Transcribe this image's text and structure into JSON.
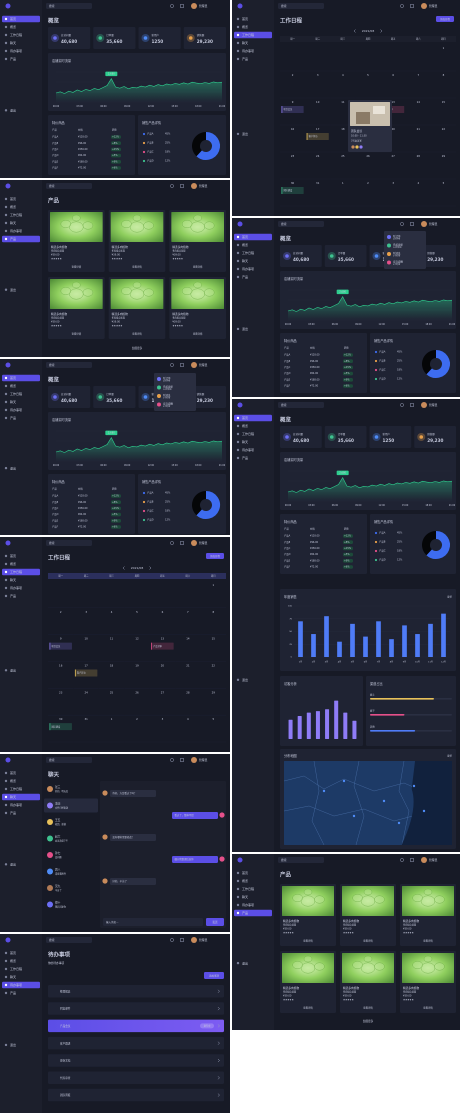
{
  "header": {
    "search": "搜索",
    "user": "管理员"
  },
  "sidebar": {
    "items": [
      "首页",
      "概览",
      "工作日程",
      "聊天",
      "待办事项",
      "产品"
    ],
    "logout": "退出"
  },
  "dashboard": {
    "title": "概览",
    "stats": [
      {
        "label": "总访问量",
        "value": "40,680",
        "color": "#6c6ff5"
      },
      {
        "label": "订单量",
        "value": "35,660",
        "color": "#3ec28f"
      },
      {
        "label": "新用户",
        "value": "1250",
        "color": "#4f8cf7"
      },
      {
        "label": "销售额",
        "value": "29,230",
        "color": "#e8a04a"
      }
    ],
    "traffic": {
      "title": "店铺实时流量",
      "ylim": [
        0,
        100
      ],
      "color": "#2ecf8f",
      "tooltip": "2,680",
      "values": [
        30,
        34,
        28,
        36,
        32,
        40,
        35,
        42,
        38,
        45,
        41,
        48,
        55,
        78,
        50,
        46,
        52,
        44,
        49,
        47,
        53,
        50,
        56,
        52,
        58,
        54,
        60,
        57,
        62,
        59,
        64,
        60,
        66,
        63,
        61,
        65,
        62,
        67,
        64,
        66
      ],
      "xlabels": [
        "00:00",
        "03:00",
        "06:00",
        "09:00",
        "12:00",
        "15:00",
        "18:00",
        "21:00"
      ]
    },
    "deals": {
      "title": "特价商品",
      "headers": [
        "产品",
        "价格",
        "趋势"
      ],
      "rows": [
        [
          "产品A",
          "¥128.00",
          "+12%"
        ],
        [
          "产品B",
          "¥96.00",
          "+8%"
        ],
        [
          "产品C",
          "¥256.00",
          "+15%"
        ],
        [
          "产品D",
          "¥64.00",
          "+5%"
        ],
        [
          "产品E",
          "¥188.00",
          "+9%"
        ],
        [
          "产品F",
          "¥72.00",
          "+6%"
        ]
      ]
    },
    "sales": {
      "title": "销售产品详情",
      "legend": [
        {
          "name": "产品A",
          "value": "45%",
          "color": "#3d6cf0"
        },
        {
          "name": "产品B",
          "value": "25%",
          "color": "#e8a04a"
        },
        {
          "name": "产品C",
          "value": "18%",
          "color": "#e5508a"
        },
        {
          "name": "产品D",
          "value": "12%",
          "color": "#3ec28f"
        }
      ],
      "donut": [
        {
          "value": 62,
          "color": "#3d6cf0"
        },
        {
          "value": 38,
          "color": "#050608"
        }
      ]
    },
    "annual": {
      "title": "年度销售",
      "more": "更多",
      "color": "#4f7cf7",
      "ylim": [
        0,
        100
      ],
      "yticks": [
        0,
        25,
        50,
        75,
        100
      ],
      "categories": [
        "1月",
        "2月",
        "3月",
        "4月",
        "5月",
        "6月",
        "7月",
        "8月",
        "9月",
        "10月",
        "11月",
        "12月"
      ],
      "values": [
        70,
        45,
        80,
        30,
        65,
        40,
        70,
        35,
        62,
        45,
        65,
        85
      ]
    },
    "visitors": {
      "title": "访客分析",
      "color": "#8f7cf7",
      "ylim": [
        0,
        100
      ],
      "values": [
        40,
        48,
        55,
        58,
        62,
        80,
        55,
        38
      ]
    },
    "channels": {
      "title": "渠道占比",
      "xlim": [
        0,
        100
      ],
      "items": [
        {
          "name": "线上",
          "value": 78,
          "color": "#e8c15a"
        },
        {
          "name": "线下",
          "value": 42,
          "color": "#e5508a"
        },
        {
          "name": "其他",
          "value": 55,
          "color": "#4f7cf7"
        }
      ]
    },
    "map": {
      "title": "分布地图",
      "more": "更多"
    }
  },
  "notifications": {
    "items": [
      {
        "title": "新订单",
        "time": "2分钟前"
      },
      {
        "title": "系统更新",
        "time": "10分钟前"
      },
      {
        "title": "新消息",
        "time": "1小时前"
      },
      {
        "title": "库存提醒",
        "time": "3小时前"
      }
    ]
  },
  "products": {
    "title": "产品",
    "more": "加载更多",
    "item": {
      "name": "精选多肉植物",
      "desc": "多肉组合盆栽",
      "price": "¥39.00",
      "rating": "★★★★★",
      "action": "查看详情"
    }
  },
  "schedule": {
    "title": "工作日程",
    "add": "添加日程",
    "month": "2021/08",
    "weekdays": [
      "周一",
      "周二",
      "周三",
      "周四",
      "周五",
      "周六",
      "周日"
    ],
    "days": [
      null,
      null,
      null,
      null,
      null,
      null,
      "1",
      "2",
      "3",
      "4",
      "5",
      "6",
      "7",
      "8",
      "9",
      "10",
      "11",
      "12",
      "13",
      "14",
      "15",
      "16",
      "17",
      "18",
      "19",
      "20",
      "21",
      "22",
      "23",
      "24",
      "25",
      "26",
      "27",
      "28",
      "29",
      "30",
      "31",
      "1",
      "2",
      "3",
      "4",
      "5"
    ],
    "events": [
      {
        "day": "9",
        "text": "项目会议",
        "color": "#8f7cf7"
      },
      {
        "day": "13",
        "text": "产品评审",
        "color": "#e5508a"
      },
      {
        "day": "17",
        "text": "客户拜访",
        "color": "#e8c15a"
      },
      {
        "day": "30",
        "text": "团队建设",
        "color": "#3ec28f"
      }
    ],
    "popup": {
      "title": "团队会议",
      "time": "10:00 - 11:30",
      "location": "3号会议室"
    }
  },
  "chat": {
    "title": "聊天",
    "placeholder": "输入消息...",
    "send": "发送",
    "contacts": [
      {
        "name": "张三",
        "msg": "好的，明天见"
      },
      {
        "name": "李四",
        "msg": "文件已经发送"
      },
      {
        "name": "王五",
        "msg": "收到，谢谢"
      },
      {
        "name": "赵六",
        "msg": "会议改到下午"
      },
      {
        "name": "孙七",
        "msg": "没问题"
      },
      {
        "name": "周八",
        "msg": "请查看附件"
      },
      {
        "name": "吴九",
        "msg": "辛苦了"
      },
      {
        "name": "郑十",
        "msg": "稍后回复你"
      }
    ],
    "messages": [
      {
        "from": "them",
        "text": "你好，方案看过了吗？"
      },
      {
        "from": "me",
        "text": "看过了，整体不错"
      },
      {
        "from": "them",
        "text": "还有哪些需要修改？"
      },
      {
        "from": "me",
        "text": "细节我整理后发你"
      },
      {
        "from": "them",
        "text": "好的，辛苦了"
      }
    ]
  },
  "todo": {
    "title": "待办事项",
    "subtitle": "你的待办事项",
    "add": "添加事项",
    "badge": "进行中",
    "items": [
      "整理报表",
      "回复邮件",
      "产品会议",
      "客户跟进",
      "更新文档",
      "代码审查",
      "团队周报"
    ]
  }
}
